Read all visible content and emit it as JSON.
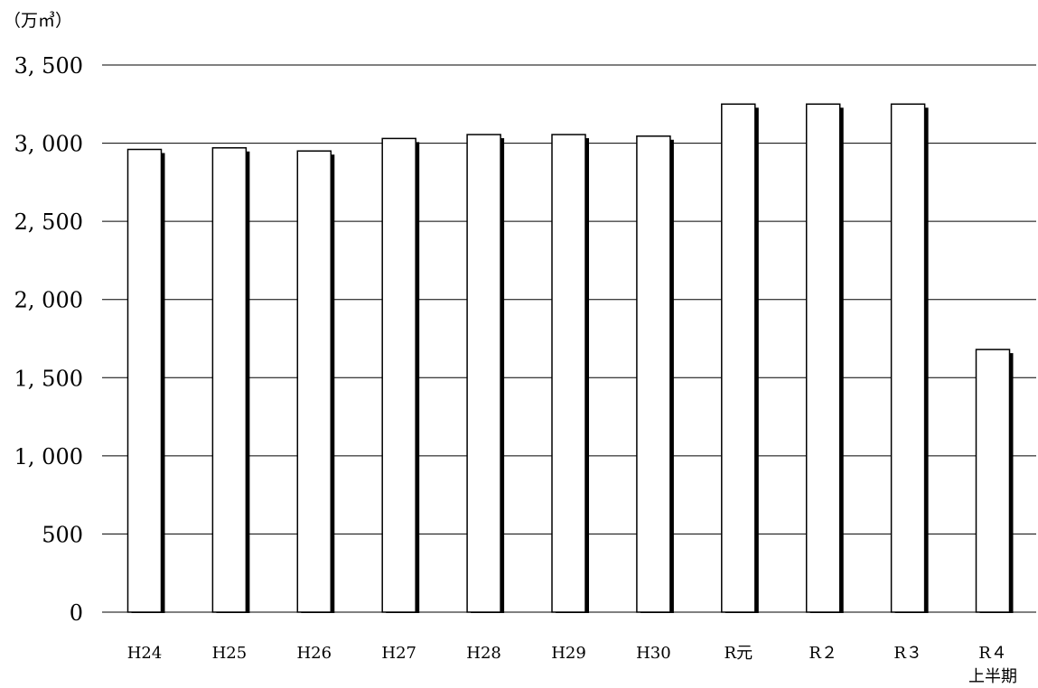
{
  "chart_data": {
    "type": "bar",
    "unit_label": "（万㎥）",
    "categories": [
      "H24",
      "H25",
      "H26",
      "H27",
      "H28",
      "H29",
      "H30",
      "R元",
      "R２",
      "R３",
      "R４"
    ],
    "category_sublabels": [
      "",
      "",
      "",
      "",
      "",
      "",
      "",
      "",
      "",
      "",
      "上半期"
    ],
    "values": [
      2960,
      2970,
      2950,
      3030,
      3055,
      3055,
      3045,
      3250,
      3250,
      3250,
      1680
    ],
    "yticks": [
      "0",
      "500",
      "1, 000",
      "1, 500",
      "2, 000",
      "2, 500",
      "3, 000",
      "3, 500"
    ],
    "ylim": [
      0,
      3500
    ],
    "grid": true,
    "colors": {
      "bar_fill": "#ffffff",
      "bar_stroke": "#000000",
      "bar_shadow": "#000000",
      "gridline": "#000000"
    }
  }
}
